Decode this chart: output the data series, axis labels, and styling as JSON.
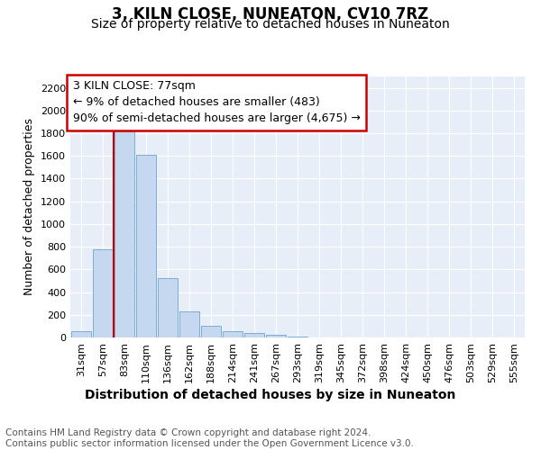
{
  "title": "3, KILN CLOSE, NUNEATON, CV10 7RZ",
  "subtitle": "Size of property relative to detached houses in Nuneaton",
  "xlabel": "Distribution of detached houses by size in Nuneaton",
  "ylabel": "Number of detached properties",
  "categories": [
    "31sqm",
    "57sqm",
    "83sqm",
    "110sqm",
    "136sqm",
    "162sqm",
    "188sqm",
    "214sqm",
    "241sqm",
    "267sqm",
    "293sqm",
    "319sqm",
    "345sqm",
    "372sqm",
    "398sqm",
    "424sqm",
    "450sqm",
    "476sqm",
    "503sqm",
    "529sqm",
    "555sqm"
  ],
  "values": [
    55,
    780,
    1820,
    1610,
    520,
    230,
    105,
    58,
    42,
    20,
    8,
    0,
    0,
    0,
    0,
    0,
    0,
    0,
    0,
    0,
    0
  ],
  "bar_color": "#c5d8f0",
  "bar_edge_color": "#7aaed6",
  "vline_color": "#cc0000",
  "annotation_text": "3 KILN CLOSE: 77sqm\n← 9% of detached houses are smaller (483)\n90% of semi-detached houses are larger (4,675) →",
  "annotation_box_color": "#ffffff",
  "annotation_box_edge_color": "#cc0000",
  "ylim": [
    0,
    2300
  ],
  "yticks": [
    0,
    200,
    400,
    600,
    800,
    1000,
    1200,
    1400,
    1600,
    1800,
    2000,
    2200
  ],
  "footnote": "Contains HM Land Registry data © Crown copyright and database right 2024.\nContains public sector information licensed under the Open Government Licence v3.0.",
  "background_color": "#ffffff",
  "plot_bg_color": "#e8eef7",
  "grid_color": "#ffffff",
  "title_fontsize": 12,
  "subtitle_fontsize": 10,
  "xlabel_fontsize": 10,
  "ylabel_fontsize": 9,
  "tick_fontsize": 8,
  "annotation_fontsize": 9,
  "footnote_fontsize": 7.5
}
